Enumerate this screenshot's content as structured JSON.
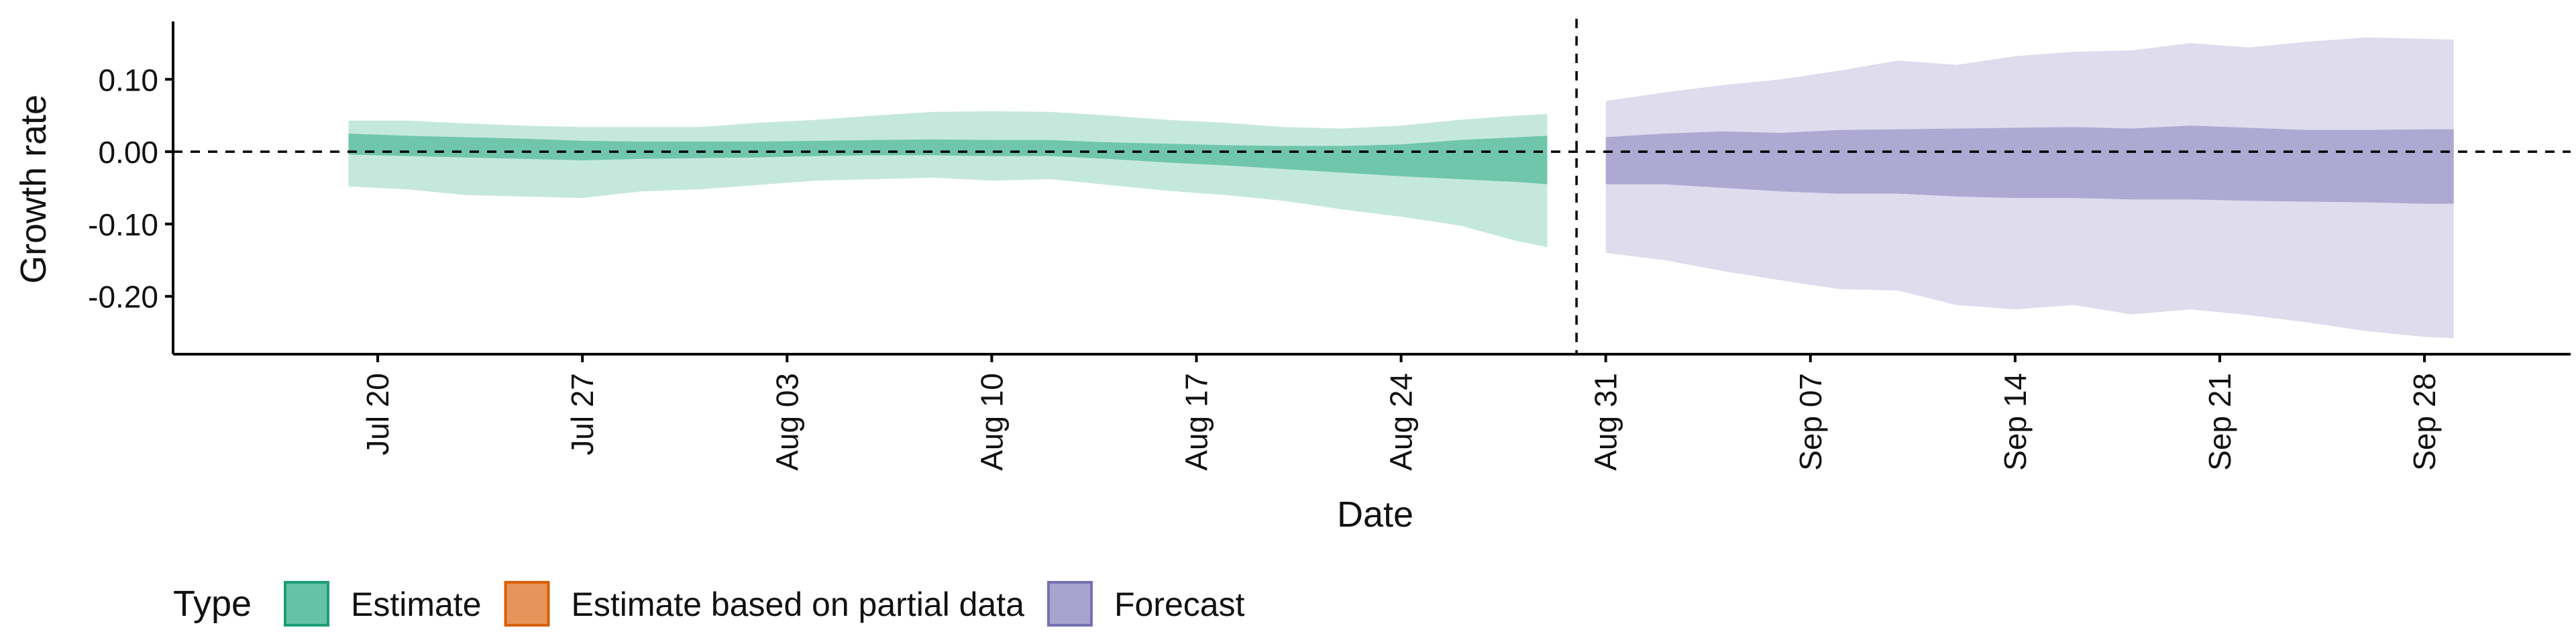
{
  "colors": {
    "estimate": "#66c2a5",
    "partial": "#e6955a",
    "forecast": "#a9a3cf",
    "estimate_border": "#1b9e77",
    "partial_border": "#d95f02",
    "forecast_border": "#7570b3",
    "axis": "#000000"
  },
  "chart_data": {
    "type": "area",
    "title": "",
    "xlabel": "Date",
    "ylabel": "Growth rate",
    "ylim": [
      -0.28,
      0.18
    ],
    "xlim": [
      "2020-07-13",
      "2020-10-03"
    ],
    "y_ticks": [
      {
        "value": 0.1,
        "label": "0.10"
      },
      {
        "value": 0.0,
        "label": "0.00"
      },
      {
        "value": -0.1,
        "label": "-0.10"
      },
      {
        "value": -0.2,
        "label": "-0.20"
      }
    ],
    "x_ticks": [
      {
        "date": "2020-07-20",
        "label": "Jul 20"
      },
      {
        "date": "2020-07-27",
        "label": "Jul 27"
      },
      {
        "date": "2020-08-03",
        "label": "Aug 03"
      },
      {
        "date": "2020-08-10",
        "label": "Aug 10"
      },
      {
        "date": "2020-08-17",
        "label": "Aug 17"
      },
      {
        "date": "2020-08-24",
        "label": "Aug 24"
      },
      {
        "date": "2020-08-31",
        "label": "Aug 31"
      },
      {
        "date": "2020-09-07",
        "label": "Sep 07"
      },
      {
        "date": "2020-09-14",
        "label": "Sep 14"
      },
      {
        "date": "2020-09-21",
        "label": "Sep 21"
      },
      {
        "date": "2020-09-28",
        "label": "Sep 28"
      }
    ],
    "hline": 0,
    "vline": "2020-08-30",
    "grid": false,
    "legend_position": "bottom",
    "legend": {
      "title": "Type",
      "items": [
        {
          "key": "estimate",
          "label": "Estimate"
        },
        {
          "key": "partial",
          "label": "Estimate based on partial data"
        },
        {
          "key": "forecast",
          "label": "Forecast"
        }
      ]
    },
    "series": [
      {
        "type_key": "estimate",
        "points": [
          {
            "date": "2020-07-19",
            "lo90": -0.048,
            "lo50": -0.004,
            "hi50": 0.025,
            "hi90": 0.043
          },
          {
            "date": "2020-07-21",
            "lo90": -0.052,
            "lo50": -0.006,
            "hi50": 0.022,
            "hi90": 0.043
          },
          {
            "date": "2020-07-23",
            "lo90": -0.06,
            "lo50": -0.008,
            "hi50": 0.02,
            "hi90": 0.039
          },
          {
            "date": "2020-07-25",
            "lo90": -0.062,
            "lo50": -0.01,
            "hi50": 0.018,
            "hi90": 0.036
          },
          {
            "date": "2020-07-27",
            "lo90": -0.064,
            "lo50": -0.012,
            "hi50": 0.015,
            "hi90": 0.034
          },
          {
            "date": "2020-07-29",
            "lo90": -0.055,
            "lo50": -0.01,
            "hi50": 0.014,
            "hi90": 0.034
          },
          {
            "date": "2020-07-31",
            "lo90": -0.052,
            "lo50": -0.009,
            "hi50": 0.014,
            "hi90": 0.034
          },
          {
            "date": "2020-08-02",
            "lo90": -0.046,
            "lo50": -0.008,
            "hi50": 0.014,
            "hi90": 0.04
          },
          {
            "date": "2020-08-04",
            "lo90": -0.04,
            "lo50": -0.006,
            "hi50": 0.015,
            "hi90": 0.044
          },
          {
            "date": "2020-08-06",
            "lo90": -0.038,
            "lo50": -0.005,
            "hi50": 0.016,
            "hi90": 0.05
          },
          {
            "date": "2020-08-08",
            "lo90": -0.036,
            "lo50": -0.005,
            "hi50": 0.017,
            "hi90": 0.055
          },
          {
            "date": "2020-08-10",
            "lo90": -0.04,
            "lo50": -0.006,
            "hi50": 0.016,
            "hi90": 0.056
          },
          {
            "date": "2020-08-12",
            "lo90": -0.038,
            "lo50": -0.006,
            "hi50": 0.016,
            "hi90": 0.055
          },
          {
            "date": "2020-08-14",
            "lo90": -0.046,
            "lo50": -0.01,
            "hi50": 0.013,
            "hi90": 0.05
          },
          {
            "date": "2020-08-16",
            "lo90": -0.054,
            "lo50": -0.015,
            "hi50": 0.011,
            "hi90": 0.044
          },
          {
            "date": "2020-08-18",
            "lo90": -0.06,
            "lo50": -0.019,
            "hi50": 0.009,
            "hi90": 0.04
          },
          {
            "date": "2020-08-20",
            "lo90": -0.068,
            "lo50": -0.024,
            "hi50": 0.008,
            "hi90": 0.034
          },
          {
            "date": "2020-08-22",
            "lo90": -0.08,
            "lo50": -0.029,
            "hi50": 0.008,
            "hi90": 0.032
          },
          {
            "date": "2020-08-24",
            "lo90": -0.09,
            "lo50": -0.034,
            "hi50": 0.01,
            "hi90": 0.036
          },
          {
            "date": "2020-08-26",
            "lo90": -0.102,
            "lo50": -0.038,
            "hi50": 0.016,
            "hi90": 0.044
          },
          {
            "date": "2020-08-28",
            "lo90": -0.124,
            "lo50": -0.042,
            "hi50": 0.02,
            "hi90": 0.05
          },
          {
            "date": "2020-08-29",
            "lo90": -0.132,
            "lo50": -0.045,
            "hi50": 0.022,
            "hi90": 0.052
          }
        ]
      },
      {
        "type_key": "forecast",
        "points": [
          {
            "date": "2020-08-31",
            "lo90": -0.14,
            "lo50": -0.045,
            "hi50": 0.02,
            "hi90": 0.07
          },
          {
            "date": "2020-09-02",
            "lo90": -0.15,
            "lo50": -0.045,
            "hi50": 0.025,
            "hi90": 0.082
          },
          {
            "date": "2020-09-04",
            "lo90": -0.165,
            "lo50": -0.05,
            "hi50": 0.028,
            "hi90": 0.092
          },
          {
            "date": "2020-09-06",
            "lo90": -0.178,
            "lo50": -0.055,
            "hi50": 0.026,
            "hi90": 0.1
          },
          {
            "date": "2020-09-08",
            "lo90": -0.19,
            "lo50": -0.058,
            "hi50": 0.03,
            "hi90": 0.112
          },
          {
            "date": "2020-09-10",
            "lo90": -0.192,
            "lo50": -0.058,
            "hi50": 0.031,
            "hi90": 0.126
          },
          {
            "date": "2020-09-12",
            "lo90": -0.212,
            "lo50": -0.062,
            "hi50": 0.032,
            "hi90": 0.12
          },
          {
            "date": "2020-09-14",
            "lo90": -0.218,
            "lo50": -0.064,
            "hi50": 0.033,
            "hi90": 0.132
          },
          {
            "date": "2020-09-16",
            "lo90": -0.212,
            "lo50": -0.064,
            "hi50": 0.034,
            "hi90": 0.138
          },
          {
            "date": "2020-09-18",
            "lo90": -0.225,
            "lo50": -0.066,
            "hi50": 0.032,
            "hi90": 0.14
          },
          {
            "date": "2020-09-20",
            "lo90": -0.218,
            "lo50": -0.066,
            "hi50": 0.036,
            "hi90": 0.15
          },
          {
            "date": "2020-09-22",
            "lo90": -0.226,
            "lo50": -0.068,
            "hi50": 0.033,
            "hi90": 0.144
          },
          {
            "date": "2020-09-24",
            "lo90": -0.236,
            "lo50": -0.069,
            "hi50": 0.03,
            "hi90": 0.152
          },
          {
            "date": "2020-09-26",
            "lo90": -0.248,
            "lo50": -0.07,
            "hi50": 0.03,
            "hi90": 0.158
          },
          {
            "date": "2020-09-28",
            "lo90": -0.256,
            "lo50": -0.072,
            "hi50": 0.031,
            "hi90": 0.156
          },
          {
            "date": "2020-09-29",
            "lo90": -0.258,
            "lo50": -0.072,
            "hi50": 0.031,
            "hi90": 0.155
          }
        ]
      }
    ]
  }
}
